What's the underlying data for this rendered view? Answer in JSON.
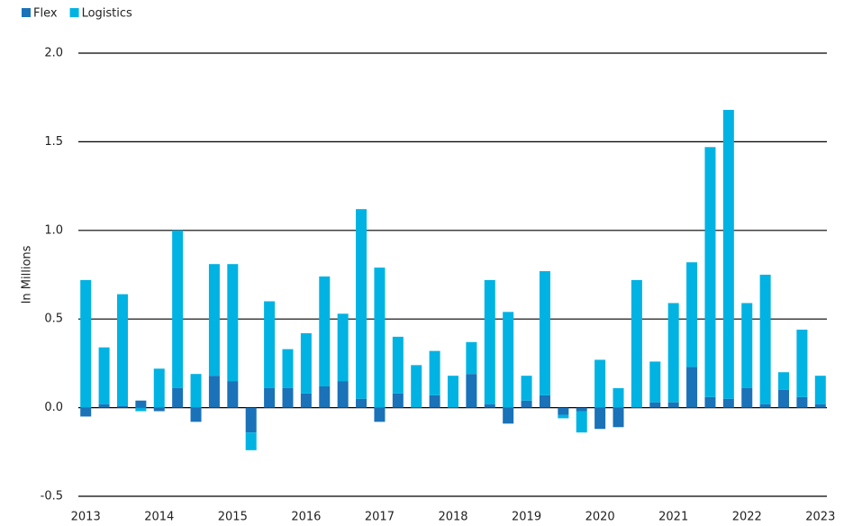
{
  "chart_data": {
    "type": "bar",
    "stacked": true,
    "y_axis_label": "In Millions",
    "categories": [
      "2013",
      null,
      null,
      null,
      "2014",
      null,
      null,
      null,
      "2015",
      null,
      null,
      null,
      "2016",
      null,
      null,
      null,
      "2017",
      null,
      null,
      null,
      "2018",
      null,
      null,
      null,
      "2019",
      null,
      null,
      null,
      "2020",
      null,
      null,
      null,
      "2021",
      null,
      null,
      null,
      "2022",
      null,
      null,
      null,
      "2023"
    ],
    "series": [
      {
        "name": "Flex",
        "color": "#1a72b8",
        "values": [
          -0.05,
          0.02,
          0.01,
          0.04,
          -0.02,
          0.11,
          -0.08,
          0.18,
          0.15,
          -0.14,
          0.11,
          0.11,
          0.08,
          0.12,
          0.15,
          0.05,
          -0.08,
          0.08,
          0,
          0.07,
          0,
          0.19,
          0.02,
          -0.09,
          0.04,
          0.07,
          -0.04,
          -0.02,
          -0.12,
          -0.11,
          0,
          0.03,
          0.03,
          0.23,
          0.06,
          0.05,
          0.11,
          0.02,
          0.1,
          0.06,
          0.02
        ]
      },
      {
        "name": "Logistics",
        "color": "#00b3e3",
        "values": [
          0.72,
          0.32,
          0.63,
          -0.02,
          0.22,
          0.89,
          0.19,
          0.63,
          0.66,
          -0.1,
          0.49,
          0.22,
          0.34,
          0.62,
          0.38,
          1.07,
          0.79,
          0.32,
          0.24,
          0.25,
          0.18,
          0.18,
          0.7,
          0.54,
          0.14,
          0.7,
          -0.02,
          -0.12,
          0.27,
          0.11,
          0.72,
          0.23,
          0.56,
          0.59,
          1.41,
          1.63,
          0.48,
          0.73,
          0.1,
          0.38,
          0.16
        ]
      }
    ],
    "ylim": [
      -0.5,
      2.0
    ],
    "yticks": [
      {
        "value": -0.5,
        "label": "-0.5"
      },
      {
        "value": 0,
        "label": "0.0"
      },
      {
        "value": 0.5,
        "label": "0.5"
      },
      {
        "value": 1,
        "label": "1.0"
      },
      {
        "value": 1.5,
        "label": "1.5"
      },
      {
        "value": 2,
        "label": "2.0"
      }
    ],
    "grid": true,
    "legend": "top-left"
  }
}
